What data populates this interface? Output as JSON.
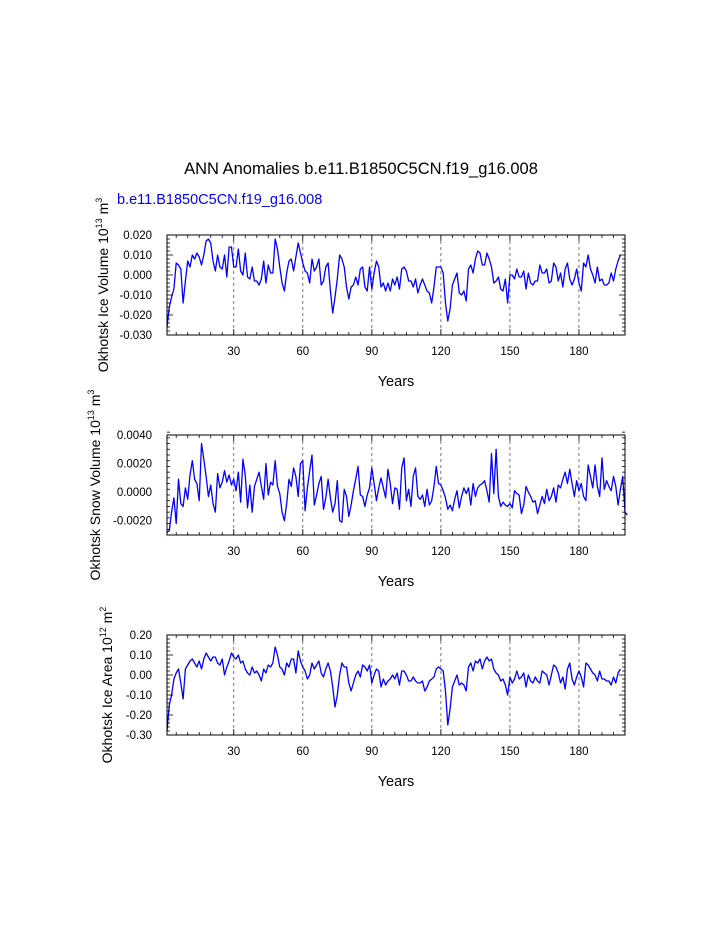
{
  "figure": {
    "title": "ANN Anomalies b.e11.B1850C5CN.f19_g16.008",
    "case_label": "b.e11.B1850C5CN.f19_g16.008",
    "case_label_color": "#0000ff",
    "line_color": "#0000ff",
    "grid_color": "#555555"
  },
  "chart_data": [
    {
      "type": "line",
      "name": "okhotsk-ice-volume",
      "ylabel": "Okhotsk Ice Volume 10",
      "ylabel_exp": "13",
      "ylabel_unit": "m",
      "ylabel_unit_exp": "3",
      "xlabel": "Years",
      "xlim": [
        1,
        200
      ],
      "ylim": [
        -0.03,
        0.02
      ],
      "x_ticks": [
        30,
        60,
        90,
        120,
        150,
        180
      ],
      "x_tick_labels": [
        "30",
        "60",
        "90",
        "120",
        "150",
        "180"
      ],
      "y_ticks": [
        -0.03,
        -0.02,
        -0.01,
        0.0,
        0.01,
        0.02
      ],
      "y_tick_labels": [
        "-0.030",
        "-0.020",
        "-0.010",
        "0.000",
        "0.010",
        "0.020"
      ],
      "y_minor_step": 0.002,
      "grid": "vertical-dashed",
      "values": [
        -0.026,
        -0.016,
        -0.011,
        -0.007,
        0.006,
        0.005,
        0.003,
        -0.014,
        -0.003,
        0.007,
        0.004,
        0.01,
        0.008,
        0.011,
        0.009,
        0.005,
        0.01,
        0.017,
        0.018,
        0.016,
        0.007,
        0.002,
        0.01,
        0.004,
        0.003,
        0.01,
        -0.001,
        0.014,
        0.014,
        0.004,
        0.004,
        0.013,
        0.002,
        0.0,
        0.011,
        -0.001,
        -0.002,
        0.004,
        -0.003,
        -0.003,
        -0.005,
        -0.002,
        0.007,
        -0.004,
        0.005,
        0.001,
        0.001,
        0.018,
        0.013,
        0.004,
        -0.004,
        -0.008,
        0.001,
        0.007,
        0.008,
        0.002,
        0.009,
        0.016,
        0.011,
        0.006,
        0.002,
        0.001,
        -0.004,
        0.008,
        0.002,
        0.004,
        0.008,
        -0.005,
        -0.003,
        0.004,
        0.006,
        -0.008,
        -0.019,
        -0.011,
        -0.002,
        0.01,
        0.008,
        0.004,
        -0.006,
        -0.012,
        -0.006,
        -0.005,
        -0.001,
        -0.005,
        0.003,
        0.004,
        -0.006,
        -0.008,
        0.004,
        -0.007,
        0.001,
        0.007,
        0.004,
        -0.006,
        -0.004,
        -0.008,
        -0.004,
        -0.008,
        -0.002,
        -0.005,
        -0.001,
        -0.007,
        0.003,
        0.004,
        0.002,
        -0.003,
        -0.003,
        -0.006,
        -0.002,
        -0.009,
        -0.005,
        -0.002,
        -0.005,
        -0.008,
        -0.009,
        -0.014,
        -0.006,
        0.004,
        0.004,
        0.004,
        0.001,
        -0.014,
        -0.023,
        -0.017,
        -0.005,
        -0.002,
        0.001,
        -0.009,
        -0.01,
        -0.008,
        -0.013,
        0.003,
        0.005,
        0.001,
        0.008,
        0.012,
        0.011,
        0.005,
        0.005,
        0.011,
        0.008,
        0.004,
        -0.004,
        -0.003,
        -0.001,
        -0.007,
        -0.008,
        -0.002,
        -0.014,
        0.0,
        0.0,
        -0.002,
        0.003,
        -0.001,
        -0.001,
        0.002,
        -0.007,
        0.001,
        -0.004,
        -0.005,
        -0.003,
        -0.003,
        0.005,
        0.001,
        0.001,
        0.003,
        -0.004,
        -0.003,
        0.006,
        0.004,
        -0.003,
        0.001,
        -0.006,
        0.003,
        0.006,
        -0.002,
        -0.005,
        -0.002,
        0.003,
        -0.004,
        -0.008,
        0.006,
        0.004,
        0.01,
        0.003,
        0.0,
        -0.004,
        0.004,
        -0.003,
        -0.002,
        -0.005,
        -0.005,
        -0.004,
        0.001,
        -0.003,
        0.003,
        0.007,
        0.01
      ]
    },
    {
      "type": "line",
      "name": "okhotsk-snow-volume",
      "ylabel": "Okhotsk Snow Volume 10",
      "ylabel_exp": "13",
      "ylabel_unit": "m",
      "ylabel_unit_exp": "3",
      "xlabel": "Years",
      "xlim": [
        1,
        200
      ],
      "ylim": [
        -0.003,
        0.004
      ],
      "x_ticks": [
        30,
        60,
        90,
        120,
        150,
        180
      ],
      "x_tick_labels": [
        "30",
        "60",
        "90",
        "120",
        "150",
        "180"
      ],
      "y_ticks": [
        -0.002,
        0.0,
        0.002,
        0.004
      ],
      "y_tick_labels": [
        "-0.0020",
        "0.0000",
        "0.0020",
        "0.0040"
      ],
      "y_minor_step": 0.0004,
      "grid": "vertical-dashed",
      "values": [
        -0.0028,
        -0.0027,
        -0.0014,
        -0.0004,
        -0.0022,
        0.0009,
        -0.0008,
        -0.001,
        0.0003,
        -0.0005,
        0.0012,
        0.0022,
        0.0009,
        0.0006,
        -0.0006,
        0.0034,
        0.0023,
        0.0011,
        -0.0003,
        0.0005,
        -0.0008,
        -0.0014,
        0.0013,
        0.0003,
        0.0007,
        0.0015,
        0.0007,
        0.0012,
        0.0005,
        0.0009,
        0.0001,
        0.0014,
        -0.0007,
        0.0023,
        0.0012,
        -0.0011,
        0.0005,
        -0.0014,
        0.0004,
        0.0009,
        0.0014,
        0.0004,
        -0.0005,
        0.002,
        -0.0002,
        0.0007,
        0.0005,
        0.0022,
        0.0004,
        -0.0001,
        -0.0014,
        -0.002,
        -0.0008,
        0.0009,
        0.0004,
        0.0017,
        0.0011,
        -0.0003,
        0.002,
        0.0022,
        -0.0013,
        0.0003,
        0.0015,
        0.0026,
        -0.0009,
        -0.0002,
        0.0006,
        0.0011,
        -0.0012,
        -0.0004,
        0.0009,
        -0.0004,
        -0.0014,
        -0.0008,
        0.0008,
        -0.002,
        -0.0021,
        0.0002,
        -0.0003,
        -0.0017,
        -0.0009,
        0.0001,
        0.0009,
        0.0018,
        -0.0002,
        -0.0003,
        -0.001,
        -0.0002,
        0.0003,
        0.0017,
        0.0006,
        -0.0006,
        0.0003,
        0.001,
        0.0003,
        -0.0004,
        0.0016,
        0.0006,
        -0.0008,
        0.0003,
        0.0002,
        -0.0012,
        0.0017,
        0.0024,
        -0.0006,
        0.0002,
        -0.001,
        0.0011,
        0.0017,
        -0.0003,
        -0.0005,
        -0.0002,
        -0.001,
        0.0002,
        -0.0009,
        -0.0006,
        0.0004,
        0.0018,
        0.0006,
        0.0005,
        0.0001,
        -0.0004,
        -0.0012,
        -0.0009,
        -0.0013,
        -0.0005,
        0.0001,
        -0.0011,
        -0.0003,
        0.0003,
        -0.0001,
        0.0003,
        -0.0009,
        0.0006,
        -0.0003,
        0.0003,
        0.0005,
        0.0006,
        0.0008,
        0.0001,
        -0.0007,
        0.0027,
        -0.0001,
        0.003,
        -0.0003,
        -0.001,
        -0.0007,
        -0.0009,
        -0.001,
        -0.0008,
        -0.0011,
        0.0001,
        -0.0001,
        -0.0002,
        -0.0015,
        -0.0009,
        0.0004,
        0.0,
        -0.0003,
        -0.0007,
        -0.0006,
        -0.0015,
        -0.0009,
        -0.0003,
        -0.0008,
        0.0002,
        -0.0006,
        -0.0003,
        0.0003,
        -0.0007,
        0.0005,
        0.0003,
        0.0009,
        0.0014,
        0.0006,
        0.0016,
        0.0006,
        -0.0003,
        0.0008,
        0.0001,
        0.0006,
        -0.0003,
        -0.0006,
        0.0019,
        0.0011,
        0.0003,
        0.0019,
        0.0004,
        -0.0003,
        0.0024,
        0.0002,
        0.0008,
        0.0004,
        0.0001,
        0.0011,
        0.0004,
        -0.0009,
        0.0002,
        0.0011,
        -0.0014,
        -0.0016
      ]
    },
    {
      "type": "line",
      "name": "okhotsk-ice-area",
      "ylabel": "Okhotsk Ice Area 10",
      "ylabel_exp": "12",
      "ylabel_unit": "m",
      "ylabel_unit_exp": "2",
      "xlabel": "Years",
      "xlim": [
        1,
        200
      ],
      "ylim": [
        -0.3,
        0.2
      ],
      "x_ticks": [
        30,
        60,
        90,
        120,
        150,
        180
      ],
      "x_tick_labels": [
        "30",
        "60",
        "90",
        "120",
        "150",
        "180"
      ],
      "y_ticks": [
        -0.3,
        -0.2,
        -0.1,
        0.0,
        0.1,
        0.2
      ],
      "y_tick_labels": [
        "-0.30",
        "-0.20",
        "-0.10",
        "0.00",
        "0.10",
        "0.20"
      ],
      "y_minor_step": 0.02,
      "grid": "vertical-dashed",
      "values": [
        -0.28,
        -0.15,
        -0.1,
        -0.02,
        0.01,
        0.03,
        -0.04,
        -0.12,
        0.03,
        0.05,
        0.07,
        0.08,
        0.06,
        0.04,
        0.07,
        0.03,
        0.08,
        0.11,
        0.09,
        0.07,
        0.09,
        0.09,
        0.06,
        0.05,
        0.08,
        0.0,
        0.04,
        0.07,
        0.11,
        0.09,
        0.08,
        0.1,
        0.06,
        0.07,
        0.03,
        0.01,
        0.0,
        0.04,
        0.01,
        0.02,
        0.0,
        -0.03,
        0.03,
        0.01,
        0.05,
        0.04,
        0.06,
        0.14,
        0.1,
        0.04,
        0.03,
        0.0,
        0.06,
        0.04,
        0.08,
        0.08,
        0.01,
        0.12,
        0.07,
        0.04,
        0.02,
        -0.02,
        0.0,
        0.06,
        0.03,
        0.05,
        0.07,
        0.01,
        -0.01,
        0.03,
        0.06,
        0.02,
        -0.06,
        -0.16,
        -0.1,
        0.0,
        0.06,
        0.04,
        0.04,
        -0.04,
        -0.08,
        -0.04,
        0.0,
        0.02,
        -0.01,
        0.05,
        0.04,
        0.02,
        0.05,
        -0.04,
        0.0,
        0.03,
        0.02,
        -0.06,
        -0.02,
        -0.05,
        -0.03,
        -0.02,
        0.0,
        -0.02,
        0.01,
        -0.05,
        0.02,
        0.02,
        0.0,
        -0.03,
        -0.03,
        -0.01,
        -0.03,
        -0.04,
        -0.04,
        -0.03,
        -0.08,
        -0.06,
        -0.03,
        -0.02,
        -0.01,
        0.03,
        0.04,
        0.03,
        0.02,
        -0.08,
        -0.25,
        -0.17,
        -0.06,
        -0.03,
        0.0,
        -0.05,
        -0.04,
        -0.05,
        -0.08,
        0.04,
        0.06,
        0.02,
        0.07,
        0.06,
        0.08,
        0.03,
        0.07,
        0.09,
        0.07,
        0.08,
        0.03,
        0.01,
        0.0,
        -0.03,
        -0.02,
        -0.05,
        -0.1,
        -0.01,
        -0.04,
        -0.02,
        0.02,
        -0.02,
        -0.01,
        0.01,
        -0.06,
        0.0,
        -0.03,
        -0.04,
        -0.01,
        -0.03,
        -0.04,
        0.02,
        0.01,
        0.0,
        -0.05,
        0.0,
        0.05,
        0.04,
        0.01,
        -0.04,
        -0.01,
        -0.07,
        0.03,
        0.06,
        -0.02,
        -0.05,
        -0.01,
        0.02,
        -0.01,
        -0.06,
        0.06,
        0.05,
        0.03,
        0.01,
        0.0,
        -0.03,
        0.02,
        -0.02,
        -0.02,
        -0.03,
        -0.03,
        -0.05,
        -0.01,
        -0.04,
        0.01,
        0.03
      ]
    }
  ]
}
